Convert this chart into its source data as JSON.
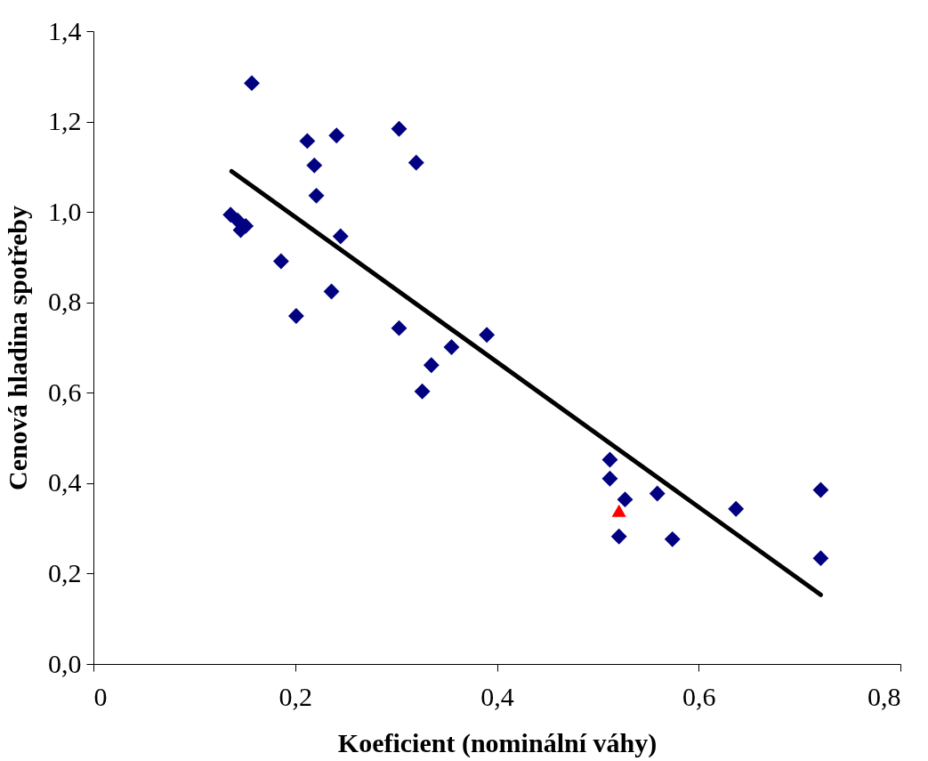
{
  "chart_data": {
    "type": "scatter",
    "xlabel": "Koeficient (nominální váhy)",
    "ylabel": "Cenová hladina spotřeby",
    "xlim": [
      0,
      0.8
    ],
    "xticks": [
      0,
      {
        "value": 0.2,
        "label": "0,2"
      },
      {
        "value": 0.4,
        "label": "0,4"
      },
      {
        "value": 0.6,
        "label": "0,6"
      },
      {
        "value": 0.8,
        "label": "0,8"
      }
    ],
    "ylim": [
      0,
      1.4
    ],
    "yticks": [
      {
        "value": 0,
        "label": "0,0"
      },
      {
        "value": 0.2,
        "label": "0,2"
      },
      {
        "value": 0.4,
        "label": "0,4"
      },
      {
        "value": 0.6,
        "label": "0,6"
      },
      {
        "value": 0.8,
        "label": "0,8"
      },
      {
        "value": 1.0,
        "label": "1,0"
      },
      {
        "value": 1.2,
        "label": "1,2"
      },
      {
        "value": 1.4,
        "label": "1,4"
      }
    ],
    "grid": false,
    "series": [
      {
        "marker": "diamond",
        "color": "#000080",
        "x": [
          0.157,
          0.212,
          0.241,
          0.219,
          0.221,
          0.303,
          0.32,
          0.136,
          0.143,
          0.146,
          0.151,
          0.245,
          0.186,
          0.236,
          0.201,
          0.303,
          0.326,
          0.335,
          0.355,
          0.39,
          0.512,
          0.512,
          0.527,
          0.521,
          0.559,
          0.574,
          0.637,
          0.721,
          0.721
        ],
        "values": [
          1.285,
          1.157,
          1.169,
          1.103,
          1.036,
          1.184,
          1.109,
          0.994,
          0.981,
          0.96,
          0.969,
          0.946,
          0.891,
          0.824,
          0.77,
          0.743,
          0.603,
          0.661,
          0.701,
          0.728,
          0.452,
          0.41,
          0.364,
          0.282,
          0.377,
          0.276,
          0.343,
          0.385,
          0.234
        ]
      },
      {
        "marker": "triangle",
        "color": "#ff0000",
        "x": [
          0.521
        ],
        "values": [
          0.339
        ]
      },
      {
        "type": "line",
        "color": "#000000",
        "line_style": "solid",
        "x": [
          0.137,
          0.721
        ],
        "values": [
          1.09,
          0.153
        ]
      }
    ]
  }
}
